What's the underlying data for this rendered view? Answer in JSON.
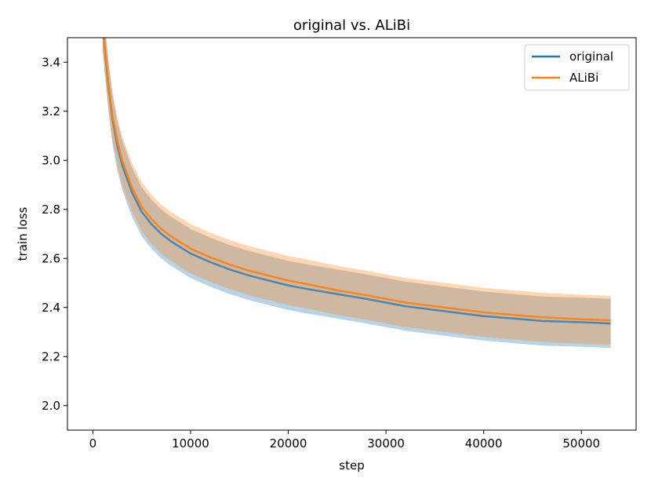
{
  "chart_data": {
    "type": "line",
    "title": "original vs. ALiBi",
    "xlabel": "step",
    "ylabel": "train loss",
    "xlim": [
      -2600,
      55600
    ],
    "ylim": [
      1.9,
      3.5
    ],
    "xticks": [
      0,
      10000,
      20000,
      30000,
      40000,
      50000
    ],
    "yticks": [
      2.0,
      2.2,
      2.4,
      2.6,
      2.8,
      3.0,
      3.2,
      3.4
    ],
    "grid": false,
    "legend_position": "top-right",
    "series": [
      {
        "name": "original",
        "color": "#1f77b4",
        "x": [
          1000,
          1300,
          1600,
          2000,
          2500,
          3000,
          4000,
          5000,
          6000,
          7000,
          8000,
          9000,
          10000,
          12000,
          14000,
          16000,
          18000,
          20000,
          22000,
          25000,
          28000,
          30000,
          32000,
          35000,
          38000,
          40000,
          43000,
          46000,
          50000,
          53000
        ],
        "y": [
          3.55,
          3.42,
          3.3,
          3.17,
          3.06,
          2.98,
          2.87,
          2.79,
          2.74,
          2.7,
          2.67,
          2.645,
          2.62,
          2.585,
          2.555,
          2.53,
          2.51,
          2.49,
          2.475,
          2.455,
          2.435,
          2.42,
          2.405,
          2.39,
          2.375,
          2.365,
          2.355,
          2.345,
          2.34,
          2.335
        ],
        "band_low": [
          3.45,
          3.32,
          3.2,
          3.07,
          2.96,
          2.88,
          2.77,
          2.69,
          2.64,
          2.6,
          2.57,
          2.545,
          2.52,
          2.485,
          2.455,
          2.43,
          2.41,
          2.39,
          2.375,
          2.355,
          2.335,
          2.32,
          2.305,
          2.29,
          2.275,
          2.265,
          2.255,
          2.245,
          2.24,
          2.235
        ],
        "band_high": [
          3.65,
          3.52,
          3.4,
          3.27,
          3.16,
          3.08,
          2.97,
          2.89,
          2.84,
          2.8,
          2.77,
          2.745,
          2.72,
          2.685,
          2.655,
          2.63,
          2.61,
          2.59,
          2.575,
          2.555,
          2.535,
          2.52,
          2.505,
          2.49,
          2.475,
          2.465,
          2.455,
          2.445,
          2.44,
          2.435
        ]
      },
      {
        "name": "ALiBi",
        "color": "#ff7f0e",
        "x": [
          1000,
          1300,
          1600,
          2000,
          2500,
          3000,
          4000,
          5000,
          6000,
          7000,
          8000,
          9000,
          10000,
          12000,
          14000,
          16000,
          18000,
          20000,
          22000,
          25000,
          28000,
          30000,
          32000,
          35000,
          38000,
          40000,
          43000,
          46000,
          50000,
          53000
        ],
        "y": [
          3.55,
          3.43,
          3.31,
          3.18,
          3.08,
          3.0,
          2.89,
          2.81,
          2.76,
          2.72,
          2.69,
          2.665,
          2.64,
          2.605,
          2.575,
          2.55,
          2.53,
          2.51,
          2.495,
          2.47,
          2.45,
          2.435,
          2.42,
          2.405,
          2.39,
          2.38,
          2.37,
          2.36,
          2.352,
          2.348
        ],
        "band_low": [
          3.45,
          3.33,
          3.21,
          3.08,
          2.98,
          2.9,
          2.79,
          2.71,
          2.66,
          2.62,
          2.59,
          2.565,
          2.54,
          2.505,
          2.475,
          2.45,
          2.43,
          2.41,
          2.395,
          2.37,
          2.35,
          2.335,
          2.32,
          2.305,
          2.29,
          2.28,
          2.27,
          2.26,
          2.252,
          2.248
        ],
        "band_high": [
          3.65,
          3.53,
          3.41,
          3.28,
          3.18,
          3.1,
          2.99,
          2.91,
          2.86,
          2.82,
          2.79,
          2.765,
          2.74,
          2.705,
          2.675,
          2.65,
          2.63,
          2.61,
          2.595,
          2.57,
          2.55,
          2.535,
          2.52,
          2.505,
          2.49,
          2.48,
          2.47,
          2.46,
          2.452,
          2.448
        ]
      }
    ]
  }
}
